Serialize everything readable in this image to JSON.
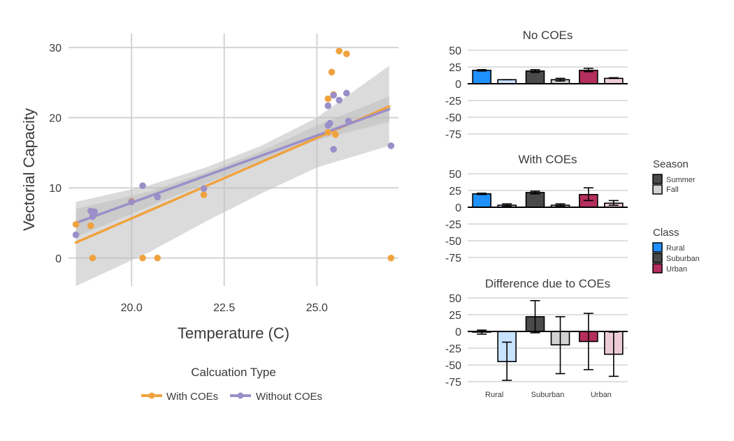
{
  "colors": {
    "with_coes": "#f0a23e",
    "without_coes": "#9a8fc9",
    "rural": "#1e90ff",
    "suburban": "#4a4a4a",
    "urban": "#b42e5e",
    "grid": "#d4d4d4",
    "band": "#bdbdbd"
  },
  "legend": {
    "title": "Calcuation Type",
    "items": [
      "With COEs",
      "Without COEs"
    ]
  },
  "season_legend": {
    "title": "Season",
    "items": [
      "Summer",
      "Fall"
    ]
  },
  "class_legend": {
    "title": "Class",
    "items": [
      "Rural",
      "Suburban",
      "Urban"
    ]
  },
  "chart_data": [
    {
      "type": "scatter",
      "xlabel": "Temperature (C)",
      "ylabel": "Vectorial Capacity",
      "xlim": [
        18.3,
        27.2
      ],
      "ylim": [
        -4,
        32
      ],
      "xticks": [
        20.0,
        22.5,
        25.0
      ],
      "xtick_labels": [
        "20.0",
        "22.5",
        "25.0"
      ],
      "yticks": [
        0,
        10,
        20,
        30
      ],
      "ytick_labels": [
        "0",
        "10",
        "20",
        "30"
      ],
      "grid": true,
      "series": [
        {
          "name": "With COEs",
          "color": "#f0a23e",
          "points": [
            [
              18.5,
              4.8
            ],
            [
              18.9,
              4.6
            ],
            [
              18.95,
              0.0
            ],
            [
              20.0,
              8.1
            ],
            [
              20.3,
              0.0
            ],
            [
              20.7,
              0.0
            ],
            [
              21.95,
              9.0
            ],
            [
              25.3,
              22.7
            ],
            [
              25.3,
              17.9
            ],
            [
              25.4,
              26.5
            ],
            [
              25.45,
              23.3
            ],
            [
              25.5,
              17.6
            ],
            [
              25.6,
              29.5
            ],
            [
              25.8,
              29.1
            ],
            [
              27.0,
              0.0
            ]
          ],
          "fit": [
            [
              18.5,
              2.2
            ],
            [
              26.95,
              21.6
            ]
          ],
          "band_upper": [
            [
              18.5,
              8.0
            ],
            [
              20.5,
              10.4
            ],
            [
              22.0,
              12.9
            ],
            [
              23.5,
              16.0
            ],
            [
              25.0,
              20.0
            ],
            [
              26.95,
              27.4
            ]
          ],
          "band_lower": [
            [
              18.5,
              -4.0
            ],
            [
              20.5,
              0.9
            ],
            [
              22.0,
              5.2
            ],
            [
              23.5,
              9.2
            ],
            [
              25.0,
              12.9
            ],
            [
              26.95,
              16.0
            ]
          ]
        },
        {
          "name": "Without COEs",
          "color": "#9a8fc9",
          "points": [
            [
              18.5,
              3.3
            ],
            [
              18.9,
              6.7
            ],
            [
              18.95,
              5.9
            ],
            [
              19.0,
              6.6
            ],
            [
              20.0,
              8.0
            ],
            [
              20.3,
              10.3
            ],
            [
              20.7,
              8.7
            ],
            [
              21.95,
              9.9
            ],
            [
              25.3,
              21.7
            ],
            [
              25.3,
              18.9
            ],
            [
              25.35,
              19.2
            ],
            [
              25.45,
              23.2
            ],
            [
              25.45,
              15.5
            ],
            [
              25.6,
              22.5
            ],
            [
              25.8,
              23.5
            ],
            [
              25.85,
              19.5
            ],
            [
              27.0,
              16.0
            ]
          ],
          "fit": [
            [
              18.5,
              5.0
            ],
            [
              26.95,
              21.2
            ]
          ],
          "band_upper": [
            [
              18.5,
              7.0
            ],
            [
              20.5,
              9.5
            ],
            [
              22.0,
              12.2
            ],
            [
              23.5,
              15.2
            ],
            [
              25.0,
              18.9
            ],
            [
              26.95,
              23.0
            ]
          ],
          "band_lower": [
            [
              18.5,
              3.0
            ],
            [
              20.5,
              7.4
            ],
            [
              22.0,
              10.6
            ],
            [
              23.5,
              13.9
            ],
            [
              25.0,
              16.8
            ],
            [
              26.95,
              19.4
            ]
          ]
        }
      ]
    },
    {
      "type": "bar",
      "title": "No COEs",
      "categories": [
        "Rural",
        "Suburban",
        "Urban"
      ],
      "ylim": [
        -80,
        55
      ],
      "yticks": [
        50,
        25,
        0,
        -25,
        -50,
        -75
      ],
      "ytick_labels": [
        "50",
        "25",
        "0",
        "-25",
        "-50",
        "-75"
      ],
      "series": [
        {
          "name": "Summer",
          "values": [
            20,
            19,
            20
          ],
          "err_low": [
            19,
            17,
            18
          ],
          "err_high": [
            21,
            21,
            23
          ]
        },
        {
          "name": "Fall",
          "values": [
            6,
            6,
            8
          ],
          "err_low": [
            6,
            4,
            8
          ],
          "err_high": [
            6,
            8,
            9
          ]
        }
      ]
    },
    {
      "type": "bar",
      "title": "With COEs",
      "categories": [
        "Rural",
        "Suburban",
        "Urban"
      ],
      "ylim": [
        -80,
        55
      ],
      "yticks": [
        50,
        25,
        0,
        -25,
        -50,
        -75
      ],
      "ytick_labels": [
        "50",
        "25",
        "0",
        "-25",
        "-50",
        "-75"
      ],
      "series": [
        {
          "name": "Summer",
          "values": [
            20,
            22,
            19
          ],
          "err_low": [
            19,
            20,
            10
          ],
          "err_high": [
            21,
            24,
            29
          ]
        },
        {
          "name": "Fall",
          "values": [
            3,
            3,
            6
          ],
          "err_low": [
            2,
            2,
            3
          ],
          "err_high": [
            5,
            5,
            10
          ]
        }
      ]
    },
    {
      "type": "bar",
      "title": "Difference due to COEs",
      "categories": [
        "Rural",
        "Suburban",
        "Urban"
      ],
      "category_labels": [
        "Rural",
        "Suburban",
        "Urban"
      ],
      "ylim": [
        -80,
        55
      ],
      "yticks": [
        50,
        25,
        0,
        -25,
        -50,
        -75
      ],
      "ytick_labels": [
        "50",
        "25",
        "0",
        "-25",
        "-50",
        "-75"
      ],
      "series": [
        {
          "name": "Summer",
          "values": [
            -1,
            22,
            -15
          ],
          "err_low": [
            -4,
            -2,
            -57
          ],
          "err_high": [
            2,
            46,
            27
          ]
        },
        {
          "name": "Fall",
          "values": [
            -45,
            -20,
            -34
          ],
          "err_low": [
            -73,
            -63,
            -67
          ],
          "err_high": [
            -16,
            22,
            -1
          ]
        }
      ]
    }
  ]
}
